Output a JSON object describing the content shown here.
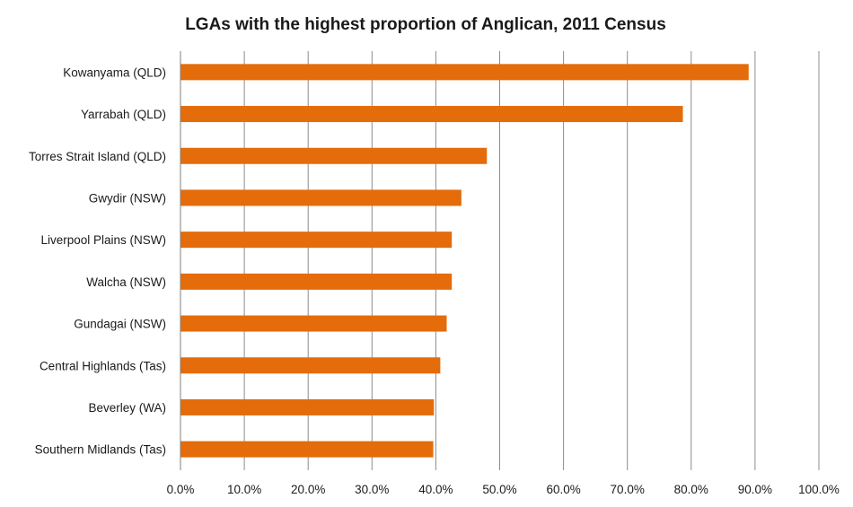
{
  "chart_data": {
    "type": "bar",
    "orientation": "horizontal",
    "title": "LGAs with the highest proportion of Anglican, 2011 Census",
    "xlabel": "",
    "ylabel": "",
    "categories": [
      "Kowanyama (QLD)",
      "Yarrabah (QLD)",
      "Torres Strait Island (QLD)",
      "Gwydir (NSW)",
      "Liverpool Plains (NSW)",
      "Walcha (NSW)",
      "Gundagai (NSW)",
      "Central Highlands (Tas)",
      "Beverley (WA)",
      "Southern Midlands (Tas)"
    ],
    "values": [
      89.0,
      78.7,
      48.0,
      44.0,
      42.5,
      42.5,
      41.7,
      40.7,
      39.7,
      39.6
    ],
    "xlim": [
      0,
      100
    ],
    "x_ticks": [
      "0.0%",
      "10.0%",
      "20.0%",
      "30.0%",
      "40.0%",
      "50.0%",
      "60.0%",
      "70.0%",
      "80.0%",
      "90.0%",
      "100.0%"
    ],
    "grid": "vertical",
    "legend": "none",
    "bar_color": "#E46C0A"
  }
}
